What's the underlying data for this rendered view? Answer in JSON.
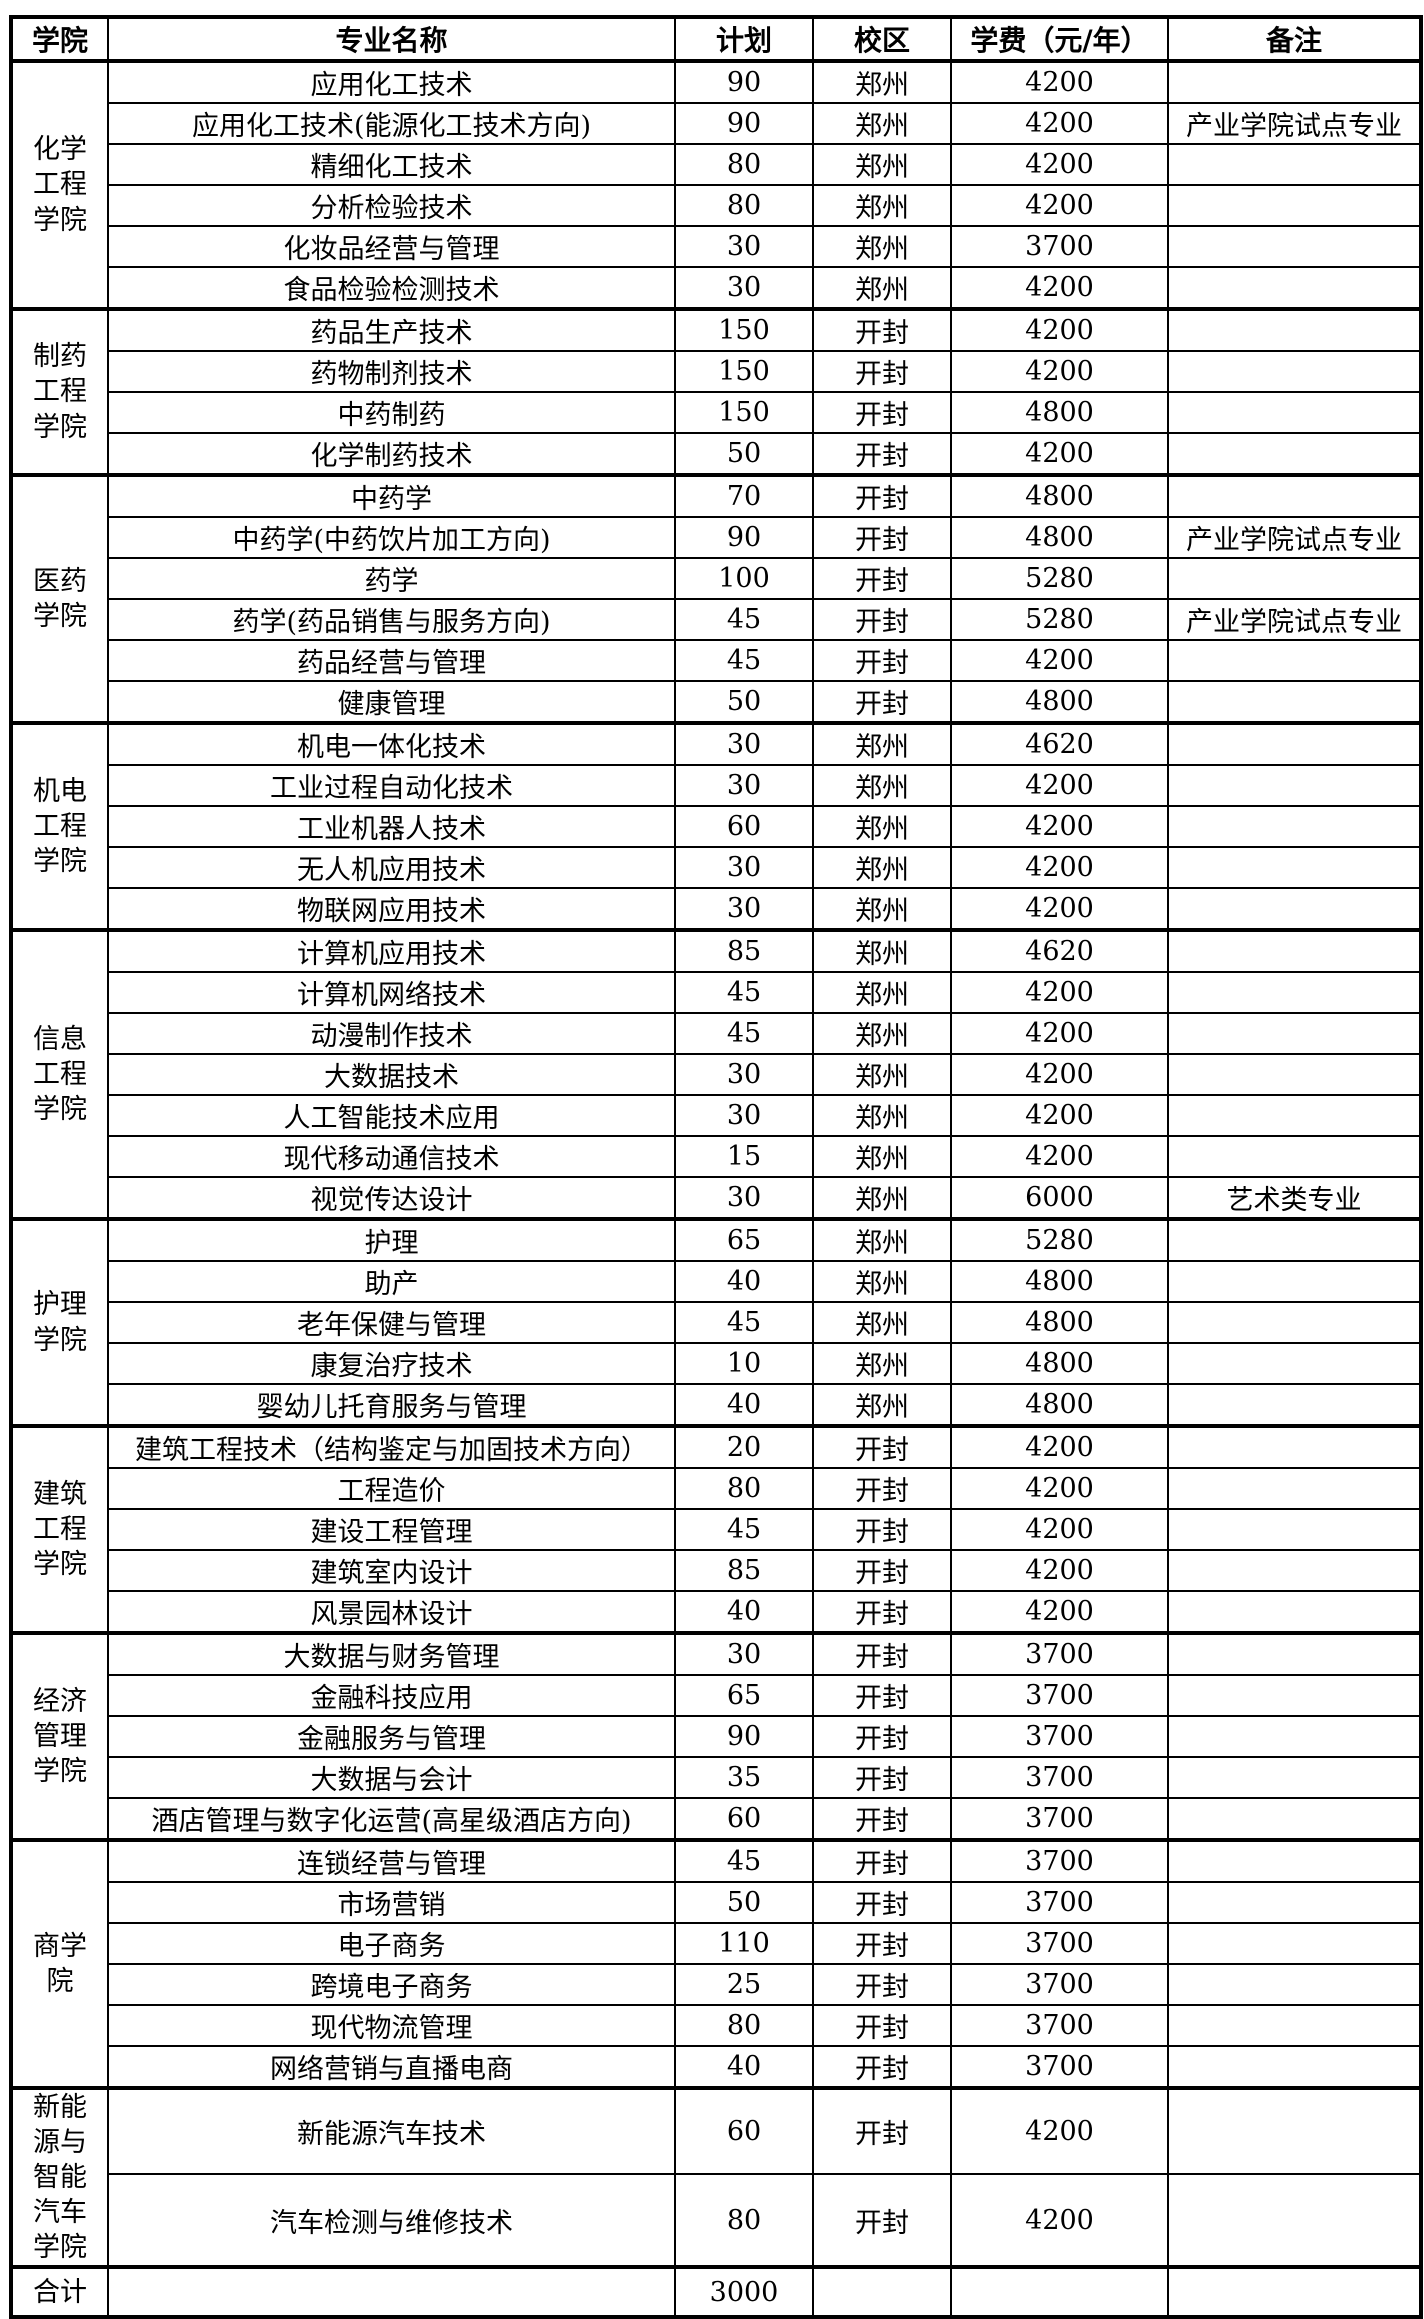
{
  "table": {
    "headers": [
      "学院",
      "专业名称",
      "计划",
      "校区",
      "学费（元/年）",
      "备注"
    ],
    "sections": [
      {
        "college": "化学\n工程\n学院",
        "rows": [
          {
            "major": "应用化工技术",
            "plan": "90",
            "campus": "郑州",
            "fee": "4200",
            "note": ""
          },
          {
            "major": "应用化工技术(能源化工技术方向)",
            "plan": "90",
            "campus": "郑州",
            "fee": "4200",
            "note": "产业学院试点专业"
          },
          {
            "major": "精细化工技术",
            "plan": "80",
            "campus": "郑州",
            "fee": "4200",
            "note": ""
          },
          {
            "major": "分析检验技术",
            "plan": "80",
            "campus": "郑州",
            "fee": "4200",
            "note": ""
          },
          {
            "major": "化妆品经营与管理",
            "plan": "30",
            "campus": "郑州",
            "fee": "3700",
            "note": ""
          },
          {
            "major": "食品检验检测技术",
            "plan": "30",
            "campus": "郑州",
            "fee": "4200",
            "note": ""
          }
        ]
      },
      {
        "college": "制药\n工程\n学院",
        "rows": [
          {
            "major": "药品生产技术",
            "plan": "150",
            "campus": "开封",
            "fee": "4200",
            "note": ""
          },
          {
            "major": "药物制剂技术",
            "plan": "150",
            "campus": "开封",
            "fee": "4200",
            "note": ""
          },
          {
            "major": "中药制药",
            "plan": "150",
            "campus": "开封",
            "fee": "4800",
            "note": ""
          },
          {
            "major": "化学制药技术",
            "plan": "50",
            "campus": "开封",
            "fee": "4200",
            "note": ""
          }
        ]
      },
      {
        "college": "医药\n学院",
        "rows": [
          {
            "major": "中药学",
            "plan": "70",
            "campus": "开封",
            "fee": "4800",
            "note": ""
          },
          {
            "major": "中药学(中药饮片加工方向)",
            "plan": "90",
            "campus": "开封",
            "fee": "4800",
            "note": "产业学院试点专业"
          },
          {
            "major": "药学",
            "plan": "100",
            "campus": "开封",
            "fee": "5280",
            "note": ""
          },
          {
            "major": "药学(药品销售与服务方向)",
            "plan": "45",
            "campus": "开封",
            "fee": "5280",
            "note": "产业学院试点专业"
          },
          {
            "major": "药品经营与管理",
            "plan": "45",
            "campus": "开封",
            "fee": "4200",
            "note": ""
          },
          {
            "major": "健康管理",
            "plan": "50",
            "campus": "开封",
            "fee": "4800",
            "note": ""
          }
        ]
      },
      {
        "college": "机电\n工程\n学院",
        "rows": [
          {
            "major": "机电一体化技术",
            "plan": "30",
            "campus": "郑州",
            "fee": "4620",
            "note": ""
          },
          {
            "major": "工业过程自动化技术",
            "plan": "30",
            "campus": "郑州",
            "fee": "4200",
            "note": ""
          },
          {
            "major": "工业机器人技术",
            "plan": "60",
            "campus": "郑州",
            "fee": "4200",
            "note": ""
          },
          {
            "major": "无人机应用技术",
            "plan": "30",
            "campus": "郑州",
            "fee": "4200",
            "note": ""
          },
          {
            "major": "物联网应用技术",
            "plan": "30",
            "campus": "郑州",
            "fee": "4200",
            "note": ""
          }
        ]
      },
      {
        "college": "信息\n工程\n学院",
        "rows": [
          {
            "major": "计算机应用技术",
            "plan": "85",
            "campus": "郑州",
            "fee": "4620",
            "note": ""
          },
          {
            "major": "计算机网络技术",
            "plan": "45",
            "campus": "郑州",
            "fee": "4200",
            "note": ""
          },
          {
            "major": "动漫制作技术",
            "plan": "45",
            "campus": "郑州",
            "fee": "4200",
            "note": ""
          },
          {
            "major": "大数据技术",
            "plan": "30",
            "campus": "郑州",
            "fee": "4200",
            "note": ""
          },
          {
            "major": "人工智能技术应用",
            "plan": "30",
            "campus": "郑州",
            "fee": "4200",
            "note": ""
          },
          {
            "major": "现代移动通信技术",
            "plan": "15",
            "campus": "郑州",
            "fee": "4200",
            "note": ""
          },
          {
            "major": "视觉传达设计",
            "plan": "30",
            "campus": "郑州",
            "fee": "6000",
            "note": "艺术类专业"
          }
        ]
      },
      {
        "college": "护理\n学院",
        "rows": [
          {
            "major": "护理",
            "plan": "65",
            "campus": "郑州",
            "fee": "5280",
            "note": ""
          },
          {
            "major": "助产",
            "plan": "40",
            "campus": "郑州",
            "fee": "4800",
            "note": ""
          },
          {
            "major": "老年保健与管理",
            "plan": "45",
            "campus": "郑州",
            "fee": "4800",
            "note": ""
          },
          {
            "major": "康复治疗技术",
            "plan": "10",
            "campus": "郑州",
            "fee": "4800",
            "note": ""
          },
          {
            "major": "婴幼儿托育服务与管理",
            "plan": "40",
            "campus": "郑州",
            "fee": "4800",
            "note": ""
          }
        ]
      },
      {
        "college": "建筑\n工程\n学院",
        "rows": [
          {
            "major": "建筑工程技术（结构鉴定与加固技术方向）",
            "plan": "20",
            "campus": "开封",
            "fee": "4200",
            "note": ""
          },
          {
            "major": "工程造价",
            "plan": "80",
            "campus": "开封",
            "fee": "4200",
            "note": ""
          },
          {
            "major": "建设工程管理",
            "plan": "45",
            "campus": "开封",
            "fee": "4200",
            "note": ""
          },
          {
            "major": "建筑室内设计",
            "plan": "85",
            "campus": "开封",
            "fee": "4200",
            "note": ""
          },
          {
            "major": "风景园林设计",
            "plan": "40",
            "campus": "开封",
            "fee": "4200",
            "note": ""
          }
        ]
      },
      {
        "college": "经济\n管理\n学院",
        "rows": [
          {
            "major": "大数据与财务管理",
            "plan": "30",
            "campus": "开封",
            "fee": "3700",
            "note": ""
          },
          {
            "major": "金融科技应用",
            "plan": "65",
            "campus": "开封",
            "fee": "3700",
            "note": ""
          },
          {
            "major": "金融服务与管理",
            "plan": "90",
            "campus": "开封",
            "fee": "3700",
            "note": ""
          },
          {
            "major": "大数据与会计",
            "plan": "35",
            "campus": "开封",
            "fee": "3700",
            "note": ""
          },
          {
            "major": "酒店管理与数字化运营(高星级酒店方向)",
            "plan": "60",
            "campus": "开封",
            "fee": "3700",
            "note": ""
          }
        ]
      },
      {
        "college": "商学\n院",
        "rows": [
          {
            "major": "连锁经营与管理",
            "plan": "45",
            "campus": "开封",
            "fee": "3700",
            "note": ""
          },
          {
            "major": "市场营销",
            "plan": "50",
            "campus": "开封",
            "fee": "3700",
            "note": ""
          },
          {
            "major": "电子商务",
            "plan": "110",
            "campus": "开封",
            "fee": "3700",
            "note": ""
          },
          {
            "major": "跨境电子商务",
            "plan": "25",
            "campus": "开封",
            "fee": "3700",
            "note": ""
          },
          {
            "major": "现代物流管理",
            "plan": "80",
            "campus": "开封",
            "fee": "3700",
            "note": ""
          },
          {
            "major": "网络营销与直播电商",
            "plan": "40",
            "campus": "开封",
            "fee": "3700",
            "note": ""
          }
        ]
      },
      {
        "college": "新能\n源与\n智能\n汽车\n学院",
        "tall": true,
        "rows": [
          {
            "major": "新能源汽车技术",
            "plan": "60",
            "campus": "开封",
            "fee": "4200",
            "note": ""
          },
          {
            "major": "汽车检测与维修技术",
            "plan": "80",
            "campus": "开封",
            "fee": "4200",
            "note": ""
          }
        ]
      }
    ],
    "total_row": {
      "college": "合计",
      "major": "",
      "plan": "3000",
      "campus": "",
      "fee": "",
      "note": ""
    }
  }
}
